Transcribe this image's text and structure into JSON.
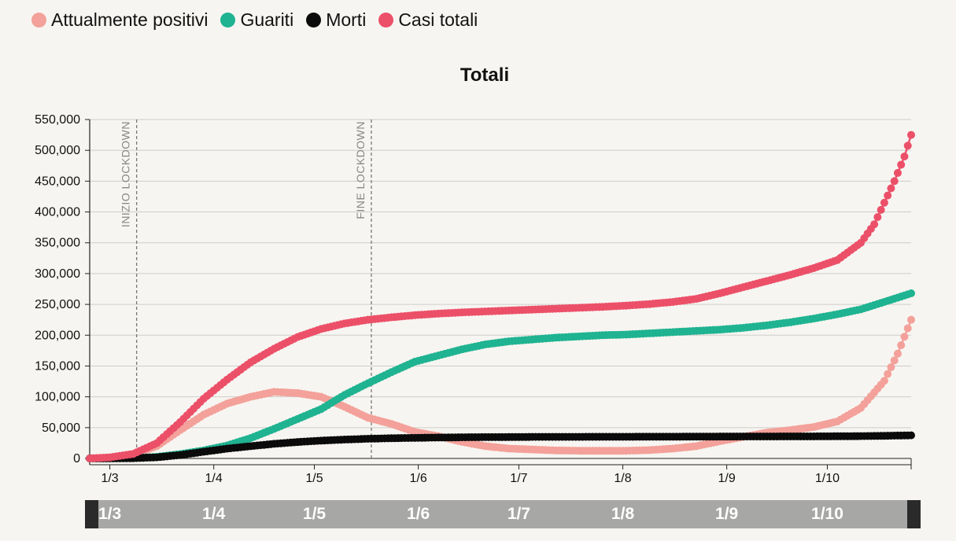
{
  "legend": {
    "items": [
      {
        "label": "Attualmente positivi",
        "color": "#f3a19a"
      },
      {
        "label": "Guariti",
        "color": "#1fb391"
      },
      {
        "label": "Morti",
        "color": "#0b0b0b"
      },
      {
        "label": "Casi totali",
        "color": "#ec5069"
      }
    ]
  },
  "chart_data": {
    "type": "line",
    "title": "Totali",
    "xlabel": "",
    "ylabel": "",
    "x_range": [
      "2020-02-24",
      "2020-10-26"
    ],
    "ylim": [
      0,
      550000
    ],
    "y_ticks": [
      0,
      50000,
      100000,
      150000,
      200000,
      250000,
      300000,
      350000,
      400000,
      450000,
      500000,
      550000
    ],
    "y_tick_labels": [
      "0",
      "50,000",
      "100,000",
      "150,000",
      "200,000",
      "250,000",
      "300,000",
      "350,000",
      "400,000",
      "450,000",
      "500,000",
      "550,000"
    ],
    "x_ticks": [
      "2020-03-01",
      "2020-04-01",
      "2020-05-01",
      "2020-06-01",
      "2020-07-01",
      "2020-08-01",
      "2020-09-01",
      "2020-10-01"
    ],
    "x_tick_labels": [
      "1/3",
      "1/4",
      "1/5",
      "1/6",
      "1/7",
      "1/8",
      "1/9",
      "1/10"
    ],
    "grid": "horizontal",
    "annotations": [
      {
        "label": "INIZIO LOCKDOWN",
        "date": "2020-03-09"
      },
      {
        "label": "FINE LOCKDOWN",
        "date": "2020-05-18"
      }
    ],
    "series": [
      {
        "name": "Attualmente positivi",
        "color": "#f3a19a",
        "points": [
          [
            "2020-02-24",
            0
          ],
          [
            "2020-03-01",
            1500
          ],
          [
            "2020-03-08",
            6000
          ],
          [
            "2020-03-15",
            20000
          ],
          [
            "2020-03-22",
            46000
          ],
          [
            "2020-03-29",
            71000
          ],
          [
            "2020-04-05",
            89000
          ],
          [
            "2020-04-12",
            100000
          ],
          [
            "2020-04-19",
            108000
          ],
          [
            "2020-04-26",
            106000
          ],
          [
            "2020-05-03",
            100000
          ],
          [
            "2020-05-10",
            84000
          ],
          [
            "2020-05-17",
            66000
          ],
          [
            "2020-05-24",
            56000
          ],
          [
            "2020-05-31",
            43000
          ],
          [
            "2020-06-07",
            36000
          ],
          [
            "2020-06-14",
            27000
          ],
          [
            "2020-06-21",
            20000
          ],
          [
            "2020-06-28",
            16000
          ],
          [
            "2020-07-05",
            14500
          ],
          [
            "2020-07-12",
            13000
          ],
          [
            "2020-07-19",
            12500
          ],
          [
            "2020-07-26",
            12500
          ],
          [
            "2020-08-02",
            12500
          ],
          [
            "2020-08-09",
            13500
          ],
          [
            "2020-08-16",
            16000
          ],
          [
            "2020-08-23",
            20000
          ],
          [
            "2020-08-30",
            28000
          ],
          [
            "2020-09-06",
            35000
          ],
          [
            "2020-09-13",
            42000
          ],
          [
            "2020-09-20",
            46000
          ],
          [
            "2020-09-27",
            51000
          ],
          [
            "2020-10-04",
            60000
          ],
          [
            "2020-10-11",
            82000
          ],
          [
            "2020-10-18",
            126000
          ],
          [
            "2020-10-22",
            170000
          ],
          [
            "2020-10-26",
            225000
          ]
        ]
      },
      {
        "name": "Guariti",
        "color": "#1fb391",
        "points": [
          [
            "2020-02-24",
            0
          ],
          [
            "2020-03-01",
            500
          ],
          [
            "2020-03-08",
            600
          ],
          [
            "2020-03-15",
            2500
          ],
          [
            "2020-03-22",
            7000
          ],
          [
            "2020-03-29",
            13000
          ],
          [
            "2020-04-05",
            21000
          ],
          [
            "2020-04-12",
            33000
          ],
          [
            "2020-04-19",
            48000
          ],
          [
            "2020-04-26",
            64000
          ],
          [
            "2020-05-03",
            80000
          ],
          [
            "2020-05-10",
            103000
          ],
          [
            "2020-05-17",
            122000
          ],
          [
            "2020-05-24",
            140000
          ],
          [
            "2020-05-31",
            157000
          ],
          [
            "2020-06-07",
            167000
          ],
          [
            "2020-06-14",
            177000
          ],
          [
            "2020-06-21",
            185000
          ],
          [
            "2020-06-28",
            190000
          ],
          [
            "2020-07-05",
            193000
          ],
          [
            "2020-07-12",
            196000
          ],
          [
            "2020-07-19",
            198000
          ],
          [
            "2020-07-26",
            200000
          ],
          [
            "2020-08-02",
            201000
          ],
          [
            "2020-08-09",
            203000
          ],
          [
            "2020-08-16",
            205000
          ],
          [
            "2020-08-23",
            207000
          ],
          [
            "2020-08-30",
            209000
          ],
          [
            "2020-09-06",
            212000
          ],
          [
            "2020-09-13",
            216000
          ],
          [
            "2020-09-20",
            221000
          ],
          [
            "2020-09-27",
            227000
          ],
          [
            "2020-10-04",
            234000
          ],
          [
            "2020-10-11",
            242000
          ],
          [
            "2020-10-18",
            254000
          ],
          [
            "2020-10-26",
            268000
          ]
        ]
      },
      {
        "name": "Morti",
        "color": "#0b0b0b",
        "points": [
          [
            "2020-02-24",
            0
          ],
          [
            "2020-03-01",
            30
          ],
          [
            "2020-03-08",
            400
          ],
          [
            "2020-03-15",
            1800
          ],
          [
            "2020-03-22",
            5500
          ],
          [
            "2020-03-29",
            10800
          ],
          [
            "2020-04-05",
            15900
          ],
          [
            "2020-04-12",
            19900
          ],
          [
            "2020-04-19",
            23700
          ],
          [
            "2020-04-26",
            26600
          ],
          [
            "2020-05-03",
            28900
          ],
          [
            "2020-05-10",
            30600
          ],
          [
            "2020-05-17",
            31900
          ],
          [
            "2020-05-24",
            32800
          ],
          [
            "2020-05-31",
            33400
          ],
          [
            "2020-06-07",
            33900
          ],
          [
            "2020-06-14",
            34300
          ],
          [
            "2020-06-21",
            34600
          ],
          [
            "2020-06-28",
            34700
          ],
          [
            "2020-07-05",
            34900
          ],
          [
            "2020-07-19",
            35000
          ],
          [
            "2020-08-02",
            35150
          ],
          [
            "2020-08-16",
            35300
          ],
          [
            "2020-08-30",
            35500
          ],
          [
            "2020-09-13",
            35600
          ],
          [
            "2020-09-27",
            35800
          ],
          [
            "2020-10-04",
            36000
          ],
          [
            "2020-10-11",
            36200
          ],
          [
            "2020-10-18",
            36700
          ],
          [
            "2020-10-26",
            37500
          ]
        ]
      },
      {
        "name": "Casi totali",
        "color": "#ec5069",
        "points": [
          [
            "2020-02-24",
            0
          ],
          [
            "2020-03-01",
            1700
          ],
          [
            "2020-03-08",
            7400
          ],
          [
            "2020-03-15",
            24700
          ],
          [
            "2020-03-22",
            59000
          ],
          [
            "2020-03-29",
            97000
          ],
          [
            "2020-04-05",
            128000
          ],
          [
            "2020-04-12",
            156000
          ],
          [
            "2020-04-19",
            178000
          ],
          [
            "2020-04-26",
            197000
          ],
          [
            "2020-05-03",
            210000
          ],
          [
            "2020-05-10",
            219000
          ],
          [
            "2020-05-17",
            225000
          ],
          [
            "2020-05-24",
            229000
          ],
          [
            "2020-05-31",
            232500
          ],
          [
            "2020-06-07",
            235000
          ],
          [
            "2020-06-14",
            237000
          ],
          [
            "2020-06-21",
            238500
          ],
          [
            "2020-06-28",
            240000
          ],
          [
            "2020-07-05",
            241500
          ],
          [
            "2020-07-12",
            243000
          ],
          [
            "2020-07-19",
            244500
          ],
          [
            "2020-07-26",
            246000
          ],
          [
            "2020-08-02",
            248000
          ],
          [
            "2020-08-09",
            250500
          ],
          [
            "2020-08-16",
            254000
          ],
          [
            "2020-08-23",
            259000
          ],
          [
            "2020-08-30",
            268000
          ],
          [
            "2020-09-06",
            278000
          ],
          [
            "2020-09-13",
            288000
          ],
          [
            "2020-09-20",
            298000
          ],
          [
            "2020-09-27",
            309000
          ],
          [
            "2020-10-04",
            322000
          ],
          [
            "2020-10-11",
            350000
          ],
          [
            "2020-10-15",
            380000
          ],
          [
            "2020-10-18",
            415000
          ],
          [
            "2020-10-21",
            450000
          ],
          [
            "2020-10-24",
            490000
          ],
          [
            "2020-10-26",
            525000
          ]
        ]
      }
    ]
  },
  "brush": {
    "labels": [
      "1/3",
      "1/4",
      "1/5",
      "1/6",
      "1/7",
      "1/8",
      "1/9",
      "1/10"
    ]
  }
}
